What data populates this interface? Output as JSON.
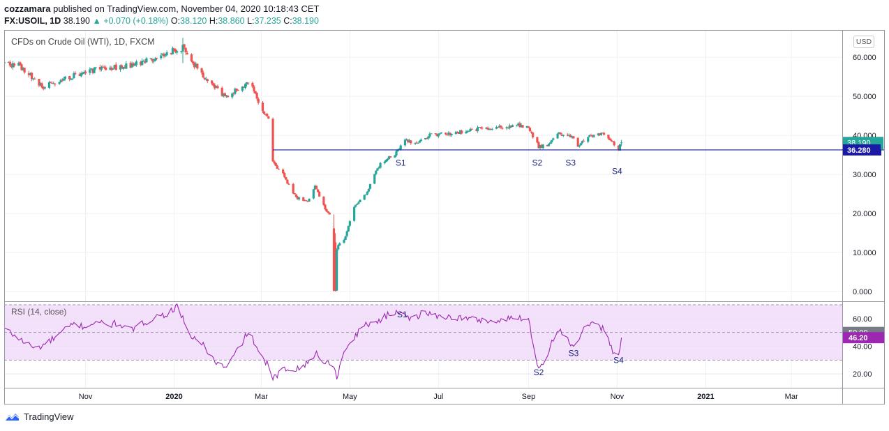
{
  "header": {
    "publisher": "cozzamara",
    "published_text": "published on TradingView.com, November 04, 2020 10:18:43 CET",
    "symbol": "FX:USOIL, 1D",
    "last": "38.190",
    "change": "▲ +0.070 (+0.18%)",
    "o_label": "O:",
    "o_value": "38.120",
    "h_label": "H:",
    "h_value": "38.860",
    "l_label": "L:",
    "l_value": "37.235",
    "c_label": "C:",
    "c_value": "38.190"
  },
  "legend_main": "CFDs on Crude Oil (WTI), 1D, FXCM",
  "legend_rsi": "RSI (14, close)",
  "currency": "USD",
  "footer": {
    "brand": "TradingView"
  },
  "colors": {
    "up": "#26a69a",
    "down": "#ef5350",
    "support": "#1a1aa6",
    "rsi": "#9c27b0",
    "rsi_band": "#f3e0fa"
  },
  "chart_data": [
    {
      "type": "candlestick",
      "title": "CFDs on Crude Oil (WTI), 1D, FXCM",
      "ylim": [
        -2.5,
        67
      ],
      "y_ticks": [
        "0.000",
        "10.000",
        "20.000",
        "30.000",
        "40.000",
        "50.000",
        "60.000"
      ],
      "y_tick_values": [
        0,
        10,
        20,
        30,
        40,
        50,
        60
      ],
      "x_ticks": [
        "Nov",
        "2020",
        "Mar",
        "May",
        "Jul",
        "Sep",
        "Nov",
        "2021",
        "Mar"
      ],
      "x_tick_dates": [
        "2019-11-01",
        "2020-01-01",
        "2020-03-01",
        "2020-05-01",
        "2020-07-01",
        "2020-09-01",
        "2020-11-01",
        "2021-01-01",
        "2021-03-01"
      ],
      "x_range": [
        "2019-09-06",
        "2021-04-05"
      ],
      "price_path": [
        [
          "2019-09-06",
          58.5
        ],
        [
          "2019-09-16",
          58.0
        ],
        [
          "2019-09-25",
          55.0
        ],
        [
          "2019-10-03",
          52.5
        ],
        [
          "2019-10-12",
          53.5
        ],
        [
          "2019-10-22",
          55.0
        ],
        [
          "2019-11-01",
          56.0
        ],
        [
          "2019-11-10",
          57.0
        ],
        [
          "2019-11-25",
          57.5
        ],
        [
          "2019-12-10",
          58.5
        ],
        [
          "2019-12-25",
          61.0
        ],
        [
          "2020-01-07",
          62.5
        ],
        [
          "2020-01-14",
          58.5
        ],
        [
          "2020-01-25",
          53.5
        ],
        [
          "2020-02-05",
          50.0
        ],
        [
          "2020-02-14",
          52.0
        ],
        [
          "2020-02-22",
          53.5
        ],
        [
          "2020-03-02",
          46.5
        ],
        [
          "2020-03-06",
          44.0
        ],
        [
          "2020-03-09",
          33.0
        ],
        [
          "2020-03-16",
          30.0
        ],
        [
          "2020-03-25",
          24.0
        ],
        [
          "2020-04-02",
          23.0
        ],
        [
          "2020-04-07",
          27.0
        ],
        [
          "2020-04-14",
          21.0
        ],
        [
          "2020-04-20",
          19.0
        ],
        [
          "2020-04-22",
          11.0
        ],
        [
          "2020-04-28",
          14.0
        ],
        [
          "2020-05-04",
          22.0
        ],
        [
          "2020-05-12",
          25.0
        ],
        [
          "2020-05-22",
          33.0
        ],
        [
          "2020-06-01",
          35.0
        ],
        [
          "2020-06-08",
          39.0
        ],
        [
          "2020-06-15",
          38.0
        ],
        [
          "2020-06-25",
          40.0
        ],
        [
          "2020-07-10",
          40.5
        ],
        [
          "2020-07-25",
          41.5
        ],
        [
          "2020-08-10",
          42.0
        ],
        [
          "2020-08-25",
          42.5
        ],
        [
          "2020-09-01",
          42.0
        ],
        [
          "2020-09-08",
          37.0
        ],
        [
          "2020-09-14",
          37.5
        ],
        [
          "2020-09-20",
          40.5
        ],
        [
          "2020-10-01",
          39.5
        ],
        [
          "2020-10-05",
          37.5
        ],
        [
          "2020-10-12",
          40.0
        ],
        [
          "2020-10-22",
          40.5
        ],
        [
          "2020-10-27",
          39.0
        ],
        [
          "2020-11-02",
          36.3
        ],
        [
          "2020-11-04",
          38.19
        ]
      ],
      "extremes": [
        {
          "date": "2020-01-07",
          "low": 58.5,
          "high": 65.0
        },
        {
          "date": "2020-04-20",
          "low": 0,
          "high": 18.0
        },
        {
          "date": "2020-04-21",
          "low": 0,
          "high": 14.0
        }
      ],
      "support_level": 36.28,
      "support_from": "2020-03-09",
      "annotations": [
        {
          "text": "S1",
          "date": "2020-06-05",
          "value": 33.0
        },
        {
          "text": "S2",
          "date": "2020-09-07",
          "value": 33.0
        },
        {
          "text": "S3",
          "date": "2020-09-30",
          "value": 33.0
        },
        {
          "text": "S4",
          "date": "2020-11-01",
          "value": 30.8
        }
      ],
      "price_labels": [
        {
          "text": "38.190",
          "value": 38.19,
          "role": "last"
        },
        {
          "text": "36.280",
          "value": 36.28,
          "role": "support"
        }
      ]
    },
    {
      "type": "line",
      "title": "RSI (14, close)",
      "ylim": [
        10,
        72
      ],
      "band": [
        30,
        70
      ],
      "midline": 50,
      "y_ticks": [
        "20.00",
        "40.00",
        "60.00"
      ],
      "y_tick_values": [
        20,
        40,
        60
      ],
      "series": [
        {
          "values": [
            [
              "2019-09-06",
              53
            ],
            [
              "2019-09-14",
              47
            ],
            [
              "2019-09-20",
              43
            ],
            [
              "2019-09-28",
              38
            ],
            [
              "2019-10-05",
              42
            ],
            [
              "2019-10-12",
              47
            ],
            [
              "2019-10-18",
              52
            ],
            [
              "2019-10-24",
              56
            ],
            [
              "2019-11-01",
              54
            ],
            [
              "2019-11-08",
              58
            ],
            [
              "2019-11-16",
              55
            ],
            [
              "2019-11-24",
              57
            ],
            [
              "2019-12-01",
              51
            ],
            [
              "2019-12-10",
              56
            ],
            [
              "2019-12-18",
              61
            ],
            [
              "2019-12-26",
              63
            ],
            [
              "2020-01-04",
              69
            ],
            [
              "2020-01-10",
              50
            ],
            [
              "2020-01-20",
              42
            ],
            [
              "2020-01-30",
              28
            ],
            [
              "2020-02-06",
              24
            ],
            [
              "2020-02-14",
              38
            ],
            [
              "2020-02-22",
              52
            ],
            [
              "2020-02-28",
              34
            ],
            [
              "2020-03-05",
              28
            ],
            [
              "2020-03-09",
              16
            ],
            [
              "2020-03-16",
              23
            ],
            [
              "2020-03-24",
              24
            ],
            [
              "2020-04-01",
              27
            ],
            [
              "2020-04-08",
              35
            ],
            [
              "2020-04-14",
              28
            ],
            [
              "2020-04-20",
              27
            ],
            [
              "2020-04-22",
              18
            ],
            [
              "2020-04-28",
              38
            ],
            [
              "2020-05-05",
              48
            ],
            [
              "2020-05-12",
              56
            ],
            [
              "2020-05-20",
              58
            ],
            [
              "2020-05-28",
              63
            ],
            [
              "2020-06-06",
              66
            ],
            [
              "2020-06-09",
              63
            ],
            [
              "2020-06-12",
              59
            ],
            [
              "2020-06-20",
              64
            ],
            [
              "2020-07-01",
              62
            ],
            [
              "2020-07-20",
              60
            ],
            [
              "2020-08-10",
              58
            ],
            [
              "2020-08-25",
              61
            ],
            [
              "2020-09-01",
              60
            ],
            [
              "2020-09-05",
              36
            ],
            [
              "2020-09-08",
              24
            ],
            [
              "2020-09-14",
              34
            ],
            [
              "2020-09-20",
              52
            ],
            [
              "2020-09-27",
              48
            ],
            [
              "2020-10-02",
              38
            ],
            [
              "2020-10-09",
              52
            ],
            [
              "2020-10-16",
              56
            ],
            [
              "2020-10-24",
              52
            ],
            [
              "2020-10-30",
              34
            ],
            [
              "2020-11-02",
              33
            ],
            [
              "2020-11-04",
              46.2
            ]
          ]
        }
      ],
      "annotations": [
        {
          "text": "S1",
          "date": "2020-06-06",
          "value": 63
        },
        {
          "text": "S2",
          "date": "2020-09-08",
          "value": 21
        },
        {
          "text": "S3",
          "date": "2020-10-02",
          "value": 35
        },
        {
          "text": "S4",
          "date": "2020-11-02",
          "value": 30
        }
      ],
      "price_labels": [
        {
          "text": "50.00",
          "value": 50,
          "role": "midline"
        },
        {
          "text": "46.20",
          "value": 46.2,
          "role": "last"
        }
      ]
    }
  ]
}
